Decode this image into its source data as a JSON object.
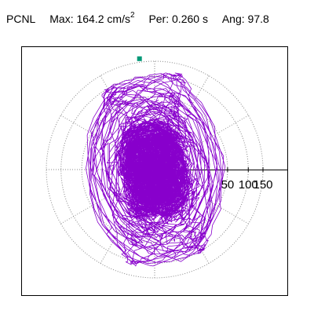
{
  "header": {
    "station": "PCNL",
    "max_label": "Max:",
    "max_value": "164.2",
    "max_unit": "cm/s",
    "max_unit_exp": "2",
    "per_label": "Per:",
    "per_value": "0.260",
    "per_unit": "s",
    "ang_label": "Ang:",
    "ang_value": "97.8"
  },
  "chart_data": {
    "type": "line",
    "projection": "polar",
    "rings": [
      50,
      100,
      150
    ],
    "tick_labels": [
      "50",
      "100",
      "150"
    ],
    "spoke_angles_deg": [
      0,
      30,
      60,
      90,
      120,
      150,
      180,
      210,
      240,
      270,
      300,
      330
    ],
    "max_value": 164.2,
    "max_point_angle_deg": 97.8,
    "grid": true,
    "colors": {
      "trace": "#8800cc",
      "grid": "#888888",
      "marker": "#009977"
    }
  }
}
